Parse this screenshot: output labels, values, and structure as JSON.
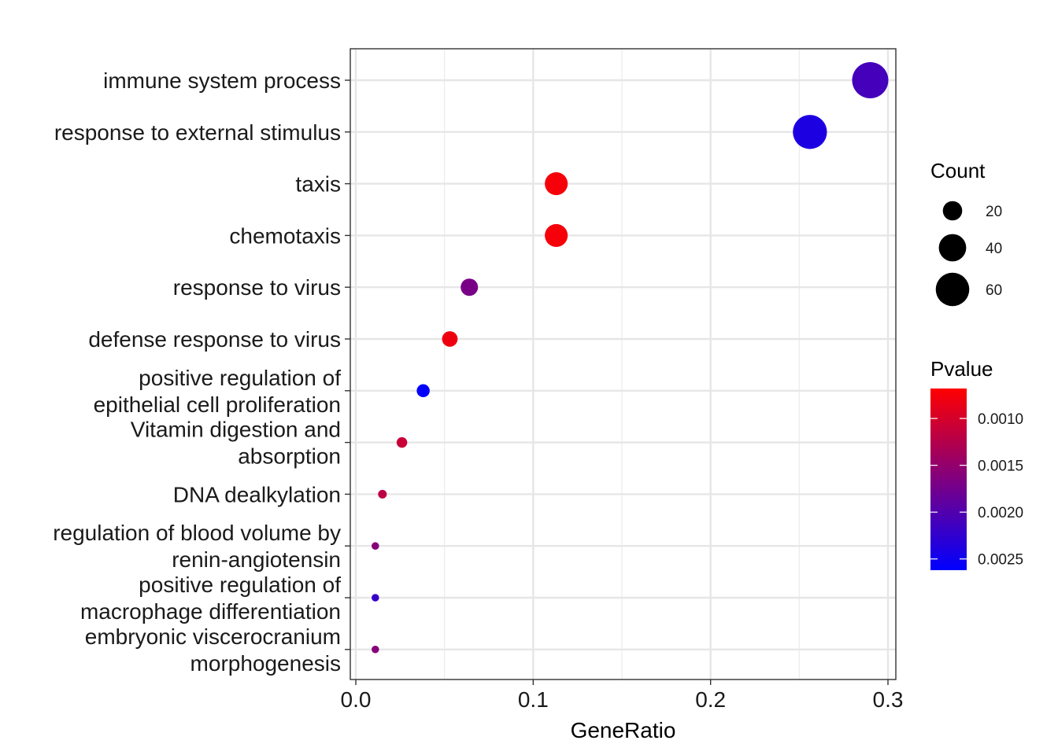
{
  "chart_data": {
    "type": "scatter",
    "xlabel": "GeneRatio",
    "ylabel": "",
    "xlim": [
      0,
      0.3
    ],
    "x_ticks": [
      {
        "value": 0.0,
        "label": "0.0"
      },
      {
        "value": 0.1,
        "label": "0.1"
      },
      {
        "value": 0.2,
        "label": "0.2"
      },
      {
        "value": 0.3,
        "label": "0.3"
      }
    ],
    "grid": true,
    "terms": [
      {
        "label": [
          "immune system process"
        ],
        "gene_ratio": 0.29,
        "count": 70,
        "pvalue": 0.0021
      },
      {
        "label": [
          "response to external stimulus"
        ],
        "gene_ratio": 0.256,
        "count": 62,
        "pvalue": 0.0024
      },
      {
        "label": [
          "taxis"
        ],
        "gene_ratio": 0.113,
        "count": 28,
        "pvalue": 0.00075
      },
      {
        "label": [
          "chemotaxis"
        ],
        "gene_ratio": 0.113,
        "count": 28,
        "pvalue": 0.00075
      },
      {
        "label": [
          "response to virus"
        ],
        "gene_ratio": 0.064,
        "count": 16,
        "pvalue": 0.0017
      },
      {
        "label": [
          "defense response to virus"
        ],
        "gene_ratio": 0.053,
        "count": 13,
        "pvalue": 0.0008
      },
      {
        "label": [
          "positive regulation of",
          "epithelial cell proliferation"
        ],
        "gene_ratio": 0.038,
        "count": 9,
        "pvalue": 0.0026
      },
      {
        "label": [
          "Vitamin digestion and",
          "absorption"
        ],
        "gene_ratio": 0.026,
        "count": 6,
        "pvalue": 0.0011
      },
      {
        "label": [
          "DNA dealkylation"
        ],
        "gene_ratio": 0.015,
        "count": 4,
        "pvalue": 0.0012
      },
      {
        "label": [
          "regulation of blood volume by",
          "renin-angiotensin"
        ],
        "gene_ratio": 0.011,
        "count": 3,
        "pvalue": 0.0016
      },
      {
        "label": [
          "positive regulation of",
          "macrophage differentiation"
        ],
        "gene_ratio": 0.011,
        "count": 3,
        "pvalue": 0.0022
      },
      {
        "label": [
          "embryonic viscerocranium",
          "morphogenesis"
        ],
        "gene_ratio": 0.011,
        "count": 3,
        "pvalue": 0.0016
      }
    ],
    "legend_position": "right",
    "size_legend": {
      "title": "Count",
      "entries": [
        {
          "value": 20,
          "label": "20"
        },
        {
          "value": 40,
          "label": "40"
        },
        {
          "value": 60,
          "label": "60"
        }
      ]
    },
    "color_legend": {
      "title": "Pvalue",
      "low_color": "#ff0000",
      "high_color": "#0000ff",
      "range": [
        0.00068,
        0.00262
      ],
      "ticks": [
        {
          "value": 0.001,
          "label": "0.0010"
        },
        {
          "value": 0.0015,
          "label": "0.0015"
        },
        {
          "value": 0.002,
          "label": "0.0020"
        },
        {
          "value": 0.0025,
          "label": "0.0025"
        }
      ]
    }
  }
}
